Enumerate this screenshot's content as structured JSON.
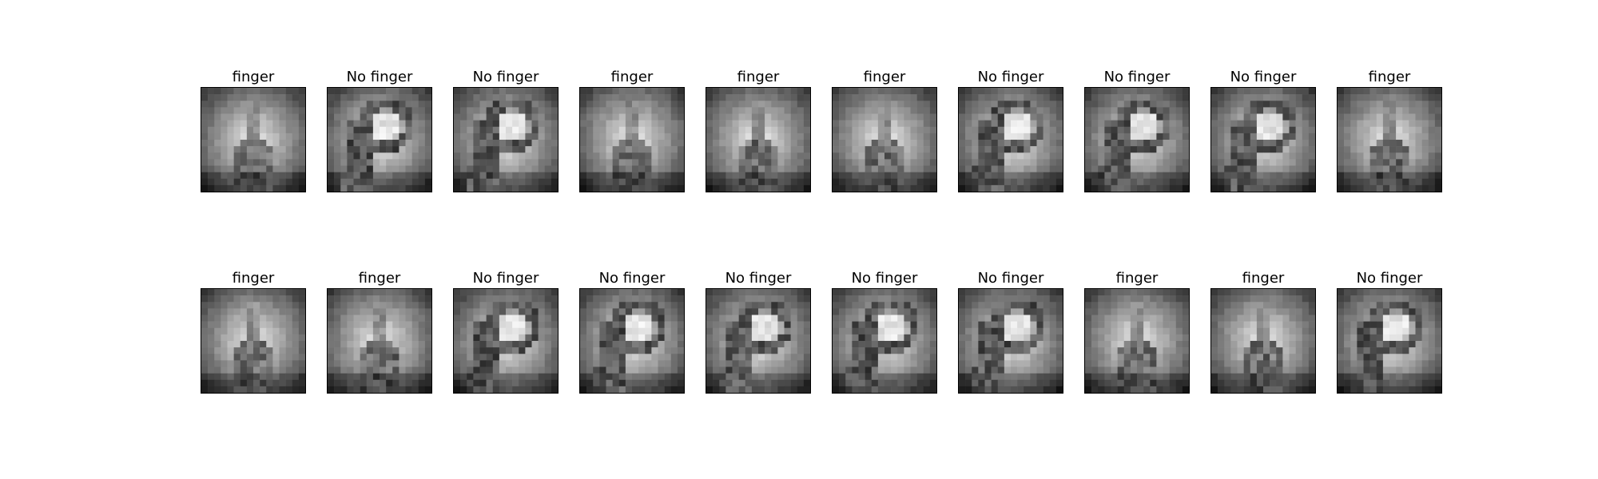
{
  "figure": {
    "rows": [
      {
        "images": [
          {
            "title": "finger",
            "gesture": "finger"
          },
          {
            "title": "No finger",
            "gesture": "no-finger"
          },
          {
            "title": "No finger",
            "gesture": "no-finger"
          },
          {
            "title": "finger",
            "gesture": "finger"
          },
          {
            "title": "finger",
            "gesture": "finger"
          },
          {
            "title": "finger",
            "gesture": "finger"
          },
          {
            "title": "No finger",
            "gesture": "no-finger"
          },
          {
            "title": "No finger",
            "gesture": "no-finger"
          },
          {
            "title": "No finger",
            "gesture": "no-finger"
          },
          {
            "title": "finger",
            "gesture": "finger"
          }
        ]
      },
      {
        "images": [
          {
            "title": "finger",
            "gesture": "finger"
          },
          {
            "title": "finger",
            "gesture": "finger"
          },
          {
            "title": "No finger",
            "gesture": "no-finger"
          },
          {
            "title": "No finger",
            "gesture": "no-finger"
          },
          {
            "title": "No finger",
            "gesture": "no-finger"
          },
          {
            "title": "No finger",
            "gesture": "no-finger"
          },
          {
            "title": "No finger",
            "gesture": "no-finger"
          },
          {
            "title": "finger",
            "gesture": "finger"
          },
          {
            "title": "finger",
            "gesture": "finger"
          },
          {
            "title": "No finger",
            "gesture": "no-finger"
          }
        ]
      }
    ]
  }
}
